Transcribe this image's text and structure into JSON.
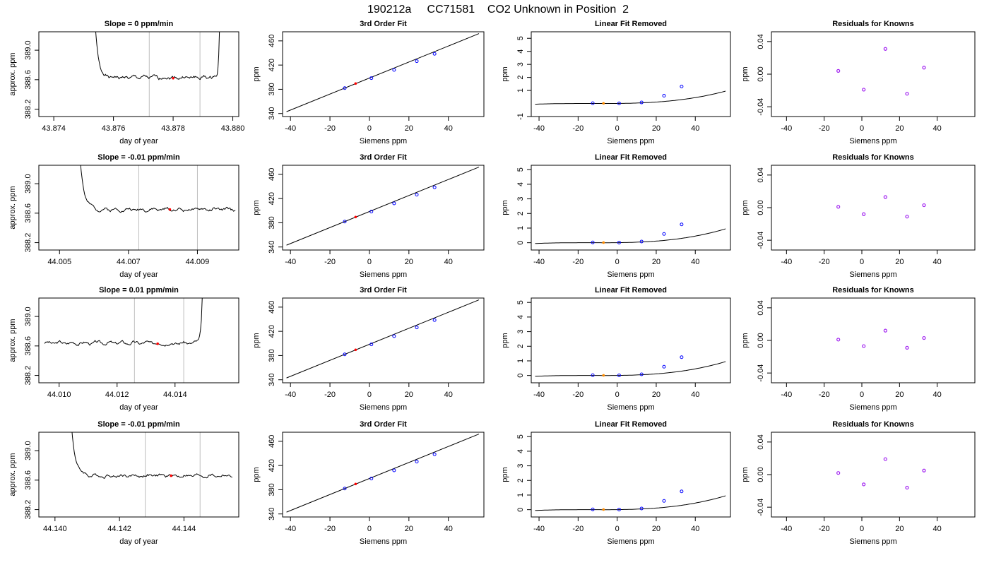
{
  "figure_title": "190212a     CC71581    CO2 Unknown in Position  2",
  "colors": {
    "trace": "#000000",
    "window_line": "#bebebe",
    "unknown_point": "#ff0000",
    "standard_point": "#0000ff",
    "unknown_fit_point": "#ff8c00",
    "residual_point": "#a020f0"
  },
  "chart_data": [
    {
      "type": "line",
      "row": 1,
      "col": 1,
      "title": "Slope =  0  ppm/min",
      "xlabel": "day of year",
      "ylabel": "approx. ppm",
      "xlim": [
        43.8735,
        43.8802
      ],
      "ylim": [
        388.1,
        389.25
      ],
      "xticks": [
        43.874,
        43.876,
        43.878,
        43.88
      ],
      "xtick_labels": [
        "43.874",
        "43.876",
        "43.878",
        "43.880"
      ],
      "yticks": [
        388.2,
        388.6,
        389.0
      ],
      "ytick_labels": [
        "388.2",
        "388.6",
        "389.0"
      ],
      "window": [
        43.8772,
        43.8789
      ],
      "start": 43.8753,
      "end": 43.8796,
      "plateau": 388.63,
      "rise_start": true,
      "rise_end": true,
      "point": {
        "x": 43.878,
        "y": 388.62
      },
      "seed": 1
    },
    {
      "type": "line",
      "row": 1,
      "col": 2,
      "title": "3rd Order Fit",
      "xlabel": "Siemens ppm",
      "ylabel": "ppm",
      "xlim": [
        -44,
        58
      ],
      "ylim": [
        335,
        475
      ],
      "xticks": [
        -40,
        -20,
        0,
        20,
        40
      ],
      "xtick_labels": [
        "-40",
        "-20",
        "0",
        "20",
        "40"
      ],
      "yticks": [
        340,
        380,
        420,
        460
      ],
      "ytick_labels": [
        "340",
        "380",
        "420",
        "460"
      ],
      "standards": [
        {
          "x": -12.5,
          "y": 382
        },
        {
          "x": 1,
          "y": 398.5
        },
        {
          "x": 12.5,
          "y": 412
        },
        {
          "x": 24,
          "y": 426.5
        },
        {
          "x": 33,
          "y": 438.5
        }
      ],
      "unknown": {
        "x": -7,
        "y": 389.5
      },
      "line": [
        {
          "x": -42,
          "y": 343
        },
        {
          "x": 55.5,
          "y": 472
        }
      ]
    },
    {
      "type": "line",
      "row": 1,
      "col": 3,
      "title": "Linear Fit Removed",
      "xlabel": "Siemens ppm",
      "ylabel": "ppm",
      "xlim": [
        -44,
        58
      ],
      "ylim": [
        -1,
        5.5
      ],
      "xticks": [
        -40,
        -20,
        0,
        20,
        40
      ],
      "xtick_labels": [
        "-40",
        "-20",
        "0",
        "20",
        "40"
      ],
      "yticks": [
        -1,
        1,
        2,
        3,
        4,
        5
      ],
      "ytick_labels": [
        "-1",
        "1",
        "2",
        "3",
        "4",
        "5"
      ],
      "curve_x0": -5,
      "curve_a": 0.00012,
      "curve_b": 2.3e-06,
      "standards": [
        {
          "x": -12.5,
          "y": 0.02
        },
        {
          "x": 1,
          "y": 0.01
        },
        {
          "x": 12.5,
          "y": 0.08
        },
        {
          "x": 24,
          "y": 0.6
        },
        {
          "x": 33,
          "y": 1.3
        }
      ],
      "unknown": {
        "x": -7,
        "y": 0.01
      }
    },
    {
      "type": "scatter",
      "row": 1,
      "col": 4,
      "title": "Residuals for Knowns",
      "xlabel": "Siemens ppm",
      "ylabel": "ppm",
      "xlim": [
        -48,
        60
      ],
      "ylim": [
        -0.052,
        0.052
      ],
      "xticks": [
        -40,
        -20,
        0,
        20,
        40
      ],
      "xtick_labels": [
        "-40",
        "-20",
        "0",
        "20",
        "40"
      ],
      "yticks": [
        -0.04,
        0.0,
        0.04
      ],
      "ytick_labels": [
        "-0.04",
        "0.00",
        "0.04"
      ],
      "points": [
        {
          "x": -12.5,
          "y": 0.004
        },
        {
          "x": 1,
          "y": -0.019
        },
        {
          "x": 12.5,
          "y": 0.031
        },
        {
          "x": 24,
          "y": -0.024
        },
        {
          "x": 33,
          "y": 0.008
        }
      ]
    },
    {
      "type": "line",
      "row": 2,
      "col": 1,
      "title": "Slope =  -0.01  ppm/min",
      "xlabel": "day of year",
      "ylabel": "approx. ppm",
      "xlim": [
        44.0044,
        44.0102
      ],
      "ylim": [
        388.1,
        389.25
      ],
      "xticks": [
        44.005,
        44.007,
        44.009
      ],
      "xtick_labels": [
        "44.005",
        "44.007",
        "44.009"
      ],
      "yticks": [
        388.2,
        388.6,
        389.0
      ],
      "ytick_labels": [
        "388.2",
        "388.6",
        "389.0"
      ],
      "window": [
        44.0073,
        44.009
      ],
      "start": 44.0055,
      "end": 44.0101,
      "plateau": 388.65,
      "rise_start": true,
      "rise_end": false,
      "point": {
        "x": 44.0082,
        "y": 388.65
      },
      "seed": 2
    },
    {
      "type": "line",
      "row": 2,
      "col": 2,
      "title": "3rd Order Fit",
      "xlabel": "Siemens ppm",
      "ylabel": "ppm",
      "xlim": [
        -44,
        58
      ],
      "ylim": [
        335,
        475
      ],
      "xticks": [
        -40,
        -20,
        0,
        20,
        40
      ],
      "xtick_labels": [
        "-40",
        "-20",
        "0",
        "20",
        "40"
      ],
      "yticks": [
        340,
        380,
        420,
        460
      ],
      "ytick_labels": [
        "340",
        "380",
        "420",
        "460"
      ],
      "standards": [
        {
          "x": -12.5,
          "y": 382
        },
        {
          "x": 1,
          "y": 398.5
        },
        {
          "x": 12.5,
          "y": 412
        },
        {
          "x": 24,
          "y": 426.5
        },
        {
          "x": 33,
          "y": 438.5
        }
      ],
      "unknown": {
        "x": -7,
        "y": 389.5
      },
      "line": [
        {
          "x": -42,
          "y": 343
        },
        {
          "x": 55.5,
          "y": 472
        }
      ]
    },
    {
      "type": "line",
      "row": 2,
      "col": 3,
      "title": "Linear Fit Removed",
      "xlabel": "Siemens ppm",
      "ylabel": "ppm",
      "xlim": [
        -44,
        58
      ],
      "ylim": [
        -0.5,
        5.3
      ],
      "xticks": [
        -40,
        -20,
        0,
        20,
        40
      ],
      "xtick_labels": [
        "-40",
        "-20",
        "0",
        "20",
        "40"
      ],
      "yticks": [
        0,
        1,
        2,
        3,
        4,
        5
      ],
      "ytick_labels": [
        "0",
        "1",
        "2",
        "3",
        "4",
        "5"
      ],
      "curve_x0": -5,
      "curve_a": 0.00012,
      "curve_b": 2.3e-06,
      "standards": [
        {
          "x": -12.5,
          "y": 0.02
        },
        {
          "x": 1,
          "y": 0.01
        },
        {
          "x": 12.5,
          "y": 0.08
        },
        {
          "x": 24,
          "y": 0.6
        },
        {
          "x": 33,
          "y": 1.25
        }
      ],
      "unknown": {
        "x": -7,
        "y": 0.01
      }
    },
    {
      "type": "scatter",
      "row": 2,
      "col": 4,
      "title": "Residuals for Knowns",
      "xlabel": "Siemens ppm",
      "ylabel": "ppm",
      "xlim": [
        -48,
        60
      ],
      "ylim": [
        -0.052,
        0.052
      ],
      "xticks": [
        -40,
        -20,
        0,
        20,
        40
      ],
      "xtick_labels": [
        "-40",
        "-20",
        "0",
        "20",
        "40"
      ],
      "yticks": [
        -0.04,
        0.0,
        0.04
      ],
      "ytick_labels": [
        "-0.04",
        "0.00",
        "0.04"
      ],
      "points": [
        {
          "x": -12.5,
          "y": 0.001
        },
        {
          "x": 1,
          "y": -0.008
        },
        {
          "x": 12.5,
          "y": 0.013
        },
        {
          "x": 24,
          "y": -0.011
        },
        {
          "x": 33,
          "y": 0.003
        }
      ]
    },
    {
      "type": "line",
      "row": 3,
      "col": 1,
      "title": "Slope =  0.01  ppm/min",
      "xlabel": "day of year",
      "ylabel": "approx. ppm",
      "xlim": [
        44.0093,
        44.0162
      ],
      "ylim": [
        388.1,
        389.25
      ],
      "xticks": [
        44.01,
        44.012,
        44.014
      ],
      "xtick_labels": [
        "44.010",
        "44.012",
        "44.014"
      ],
      "yticks": [
        388.2,
        388.6,
        389.0
      ],
      "ytick_labels": [
        "388.2",
        "388.6",
        "389.0"
      ],
      "window": [
        44.0126,
        44.0143
      ],
      "start": 44.0095,
      "end": 44.015,
      "plateau": 388.64,
      "rise_start": false,
      "rise_end": true,
      "point": {
        "x": 44.0134,
        "y": 388.63
      },
      "seed": 3
    },
    {
      "type": "line",
      "row": 3,
      "col": 2,
      "title": "3rd Order Fit",
      "xlabel": "Siemens ppm",
      "ylabel": "ppm",
      "xlim": [
        -44,
        58
      ],
      "ylim": [
        335,
        475
      ],
      "xticks": [
        -40,
        -20,
        0,
        20,
        40
      ],
      "xtick_labels": [
        "-40",
        "-20",
        "0",
        "20",
        "40"
      ],
      "yticks": [
        340,
        380,
        420,
        460
      ],
      "ytick_labels": [
        "340",
        "380",
        "420",
        "460"
      ],
      "standards": [
        {
          "x": -12.5,
          "y": 382
        },
        {
          "x": 1,
          "y": 398.5
        },
        {
          "x": 12.5,
          "y": 412
        },
        {
          "x": 24,
          "y": 426.5
        },
        {
          "x": 33,
          "y": 438.5
        }
      ],
      "unknown": {
        "x": -7,
        "y": 389.5
      },
      "line": [
        {
          "x": -42,
          "y": 343
        },
        {
          "x": 55.5,
          "y": 472
        }
      ]
    },
    {
      "type": "line",
      "row": 3,
      "col": 3,
      "title": "Linear Fit Removed",
      "xlabel": "Siemens ppm",
      "ylabel": "ppm",
      "xlim": [
        -44,
        58
      ],
      "ylim": [
        -0.5,
        5.3
      ],
      "xticks": [
        -40,
        -20,
        0,
        20,
        40
      ],
      "xtick_labels": [
        "-40",
        "-20",
        "0",
        "20",
        "40"
      ],
      "yticks": [
        0,
        1,
        2,
        3,
        4,
        5
      ],
      "ytick_labels": [
        "0",
        "1",
        "2",
        "3",
        "4",
        "5"
      ],
      "curve_x0": -5,
      "curve_a": 0.00012,
      "curve_b": 2.3e-06,
      "standards": [
        {
          "x": -12.5,
          "y": 0.02
        },
        {
          "x": 1,
          "y": 0.01
        },
        {
          "x": 12.5,
          "y": 0.08
        },
        {
          "x": 24,
          "y": 0.6
        },
        {
          "x": 33,
          "y": 1.25
        }
      ],
      "unknown": {
        "x": -7,
        "y": 0.01
      }
    },
    {
      "type": "scatter",
      "row": 3,
      "col": 4,
      "title": "Residuals for Knowns",
      "xlabel": "Siemens ppm",
      "ylabel": "ppm",
      "xlim": [
        -48,
        60
      ],
      "ylim": [
        -0.052,
        0.052
      ],
      "xticks": [
        -40,
        -20,
        0,
        20,
        40
      ],
      "xtick_labels": [
        "-40",
        "-20",
        "0",
        "20",
        "40"
      ],
      "yticks": [
        -0.04,
        0.0,
        0.04
      ],
      "ytick_labels": [
        "-0.04",
        "0.00",
        "0.04"
      ],
      "points": [
        {
          "x": -12.5,
          "y": 0.001
        },
        {
          "x": 1,
          "y": -0.007
        },
        {
          "x": 12.5,
          "y": 0.012
        },
        {
          "x": 24,
          "y": -0.009
        },
        {
          "x": 33,
          "y": 0.003
        }
      ]
    },
    {
      "type": "line",
      "row": 4,
      "col": 1,
      "title": "Slope =  -0.01  ppm/min",
      "xlabel": "day of year",
      "ylabel": "approx. ppm",
      "xlim": [
        44.1395,
        44.1457
      ],
      "ylim": [
        388.1,
        389.25
      ],
      "xticks": [
        44.14,
        44.142,
        44.144
      ],
      "xtick_labels": [
        "44.140",
        "44.142",
        "44.144"
      ],
      "yticks": [
        388.2,
        388.6,
        389.0
      ],
      "ytick_labels": [
        "388.2",
        "388.6",
        "389.0"
      ],
      "window": [
        44.1428,
        44.1445
      ],
      "start": 44.1404,
      "end": 44.1455,
      "plateau": 388.66,
      "rise_start": true,
      "rise_end": false,
      "point": {
        "x": 44.1436,
        "y": 388.66
      },
      "seed": 4
    },
    {
      "type": "line",
      "row": 4,
      "col": 2,
      "title": "3rd Order Fit",
      "xlabel": "Siemens ppm",
      "ylabel": "ppm",
      "xlim": [
        -44,
        58
      ],
      "ylim": [
        335,
        475
      ],
      "xticks": [
        -40,
        -20,
        0,
        20,
        40
      ],
      "xtick_labels": [
        "-40",
        "-20",
        "0",
        "20",
        "40"
      ],
      "yticks": [
        340,
        380,
        420,
        460
      ],
      "ytick_labels": [
        "340",
        "380",
        "420",
        "460"
      ],
      "standards": [
        {
          "x": -12.5,
          "y": 382
        },
        {
          "x": 1,
          "y": 398.5
        },
        {
          "x": 12.5,
          "y": 412
        },
        {
          "x": 24,
          "y": 426.5
        },
        {
          "x": 33,
          "y": 438.5
        }
      ],
      "unknown": {
        "x": -7,
        "y": 389.5
      },
      "line": [
        {
          "x": -42,
          "y": 343
        },
        {
          "x": 55.5,
          "y": 472
        }
      ]
    },
    {
      "type": "line",
      "row": 4,
      "col": 3,
      "title": "Linear Fit Removed",
      "xlabel": "Siemens ppm",
      "ylabel": "ppm",
      "xlim": [
        -44,
        58
      ],
      "ylim": [
        -0.5,
        5.3
      ],
      "xticks": [
        -40,
        -20,
        0,
        20,
        40
      ],
      "xtick_labels": [
        "-40",
        "-20",
        "0",
        "20",
        "40"
      ],
      "yticks": [
        0,
        1,
        2,
        3,
        4,
        5
      ],
      "ytick_labels": [
        "0",
        "1",
        "2",
        "3",
        "4",
        "5"
      ],
      "curve_x0": -5,
      "curve_a": 0.00012,
      "curve_b": 2.3e-06,
      "standards": [
        {
          "x": -12.5,
          "y": 0.02
        },
        {
          "x": 1,
          "y": 0.01
        },
        {
          "x": 12.5,
          "y": 0.08
        },
        {
          "x": 24,
          "y": 0.6
        },
        {
          "x": 33,
          "y": 1.25
        }
      ],
      "unknown": {
        "x": -7,
        "y": 0.01
      }
    },
    {
      "type": "scatter",
      "row": 4,
      "col": 4,
      "title": "Residuals for Knowns",
      "xlabel": "Siemens ppm",
      "ylabel": "ppm",
      "xlim": [
        -48,
        60
      ],
      "ylim": [
        -0.052,
        0.052
      ],
      "xticks": [
        -40,
        -20,
        0,
        20,
        40
      ],
      "xtick_labels": [
        "-40",
        "-20",
        "0",
        "20",
        "40"
      ],
      "yticks": [
        -0.04,
        0.0,
        0.04
      ],
      "ytick_labels": [
        "-0.04",
        "0.00",
        "0.04"
      ],
      "points": [
        {
          "x": -12.5,
          "y": 0.002
        },
        {
          "x": 1,
          "y": -0.012
        },
        {
          "x": 12.5,
          "y": 0.019
        },
        {
          "x": 24,
          "y": -0.016
        },
        {
          "x": 33,
          "y": 0.005
        }
      ]
    }
  ]
}
